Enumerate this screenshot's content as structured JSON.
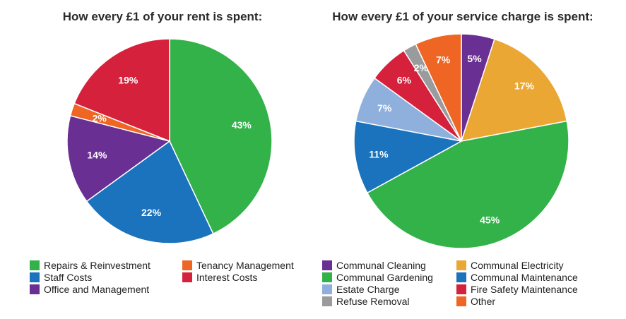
{
  "chart_data": [
    {
      "type": "pie",
      "title": "How every £1 of your rent is spent:",
      "start": "top",
      "direction": "clockwise",
      "slices": [
        {
          "label": "Repairs & Reinvestment",
          "value": 43,
          "text": "43%",
          "color": "#33b24a"
        },
        {
          "label": "Staff Costs",
          "value": 22,
          "text": "22%",
          "color": "#1a73bc"
        },
        {
          "label": "Office and Management",
          "value": 14,
          "text": "14%",
          "color": "#6a2f92"
        },
        {
          "label": "Tenancy Management",
          "value": 2,
          "text": "2%",
          "color": "#ef6523"
        },
        {
          "label": "Interest Costs",
          "value": 19,
          "text": "19%",
          "color": "#d6213c"
        }
      ],
      "legend": [
        {
          "label": "Repairs & Reinvestment",
          "color": "#33b24a"
        },
        {
          "label": "Tenancy Management",
          "color": "#ef6523"
        },
        {
          "label": "Staff Costs",
          "color": "#1a73bc"
        },
        {
          "label": "Interest Costs",
          "color": "#d6213c"
        },
        {
          "label": "Office and Management",
          "color": "#6a2f92"
        }
      ]
    },
    {
      "type": "pie",
      "title": "How every £1 of your service charge is spent:",
      "start": "top",
      "direction": "clockwise",
      "slices": [
        {
          "label": "Communal Cleaning",
          "value": 5,
          "text": "5%",
          "color": "#6a2f92"
        },
        {
          "label": "Communal Electricity",
          "value": 17,
          "text": "17%",
          "color": "#eba733"
        },
        {
          "label": "Communal Gardening",
          "value": 45,
          "text": "45%",
          "color": "#33b24a"
        },
        {
          "label": "Communal Maintenance",
          "value": 11,
          "text": "11%",
          "color": "#1a73bc"
        },
        {
          "label": "Estate Charge",
          "value": 7,
          "text": "7%",
          "color": "#8fb0dd"
        },
        {
          "label": "Fire Safety Maintenance",
          "value": 6,
          "text": "6%",
          "color": "#d6213c"
        },
        {
          "label": "Refuse Removal",
          "value": 2,
          "text": "2%",
          "color": "#9a9b9d"
        },
        {
          "label": "Other",
          "value": 7,
          "text": "7%",
          "color": "#ef6523"
        }
      ],
      "legend": [
        {
          "label": "Communal Cleaning",
          "color": "#6a2f92"
        },
        {
          "label": "Communal Electricity",
          "color": "#eba733"
        },
        {
          "label": "Communal Gardening",
          "color": "#33b24a"
        },
        {
          "label": "Communal Maintenance",
          "color": "#1a73bc"
        },
        {
          "label": "Estate Charge",
          "color": "#8fb0dd"
        },
        {
          "label": "Fire Safety Maintenance",
          "color": "#d6213c"
        },
        {
          "label": "Refuse Removal",
          "color": "#9a9b9d"
        },
        {
          "label": "Other",
          "color": "#ef6523"
        }
      ]
    }
  ]
}
